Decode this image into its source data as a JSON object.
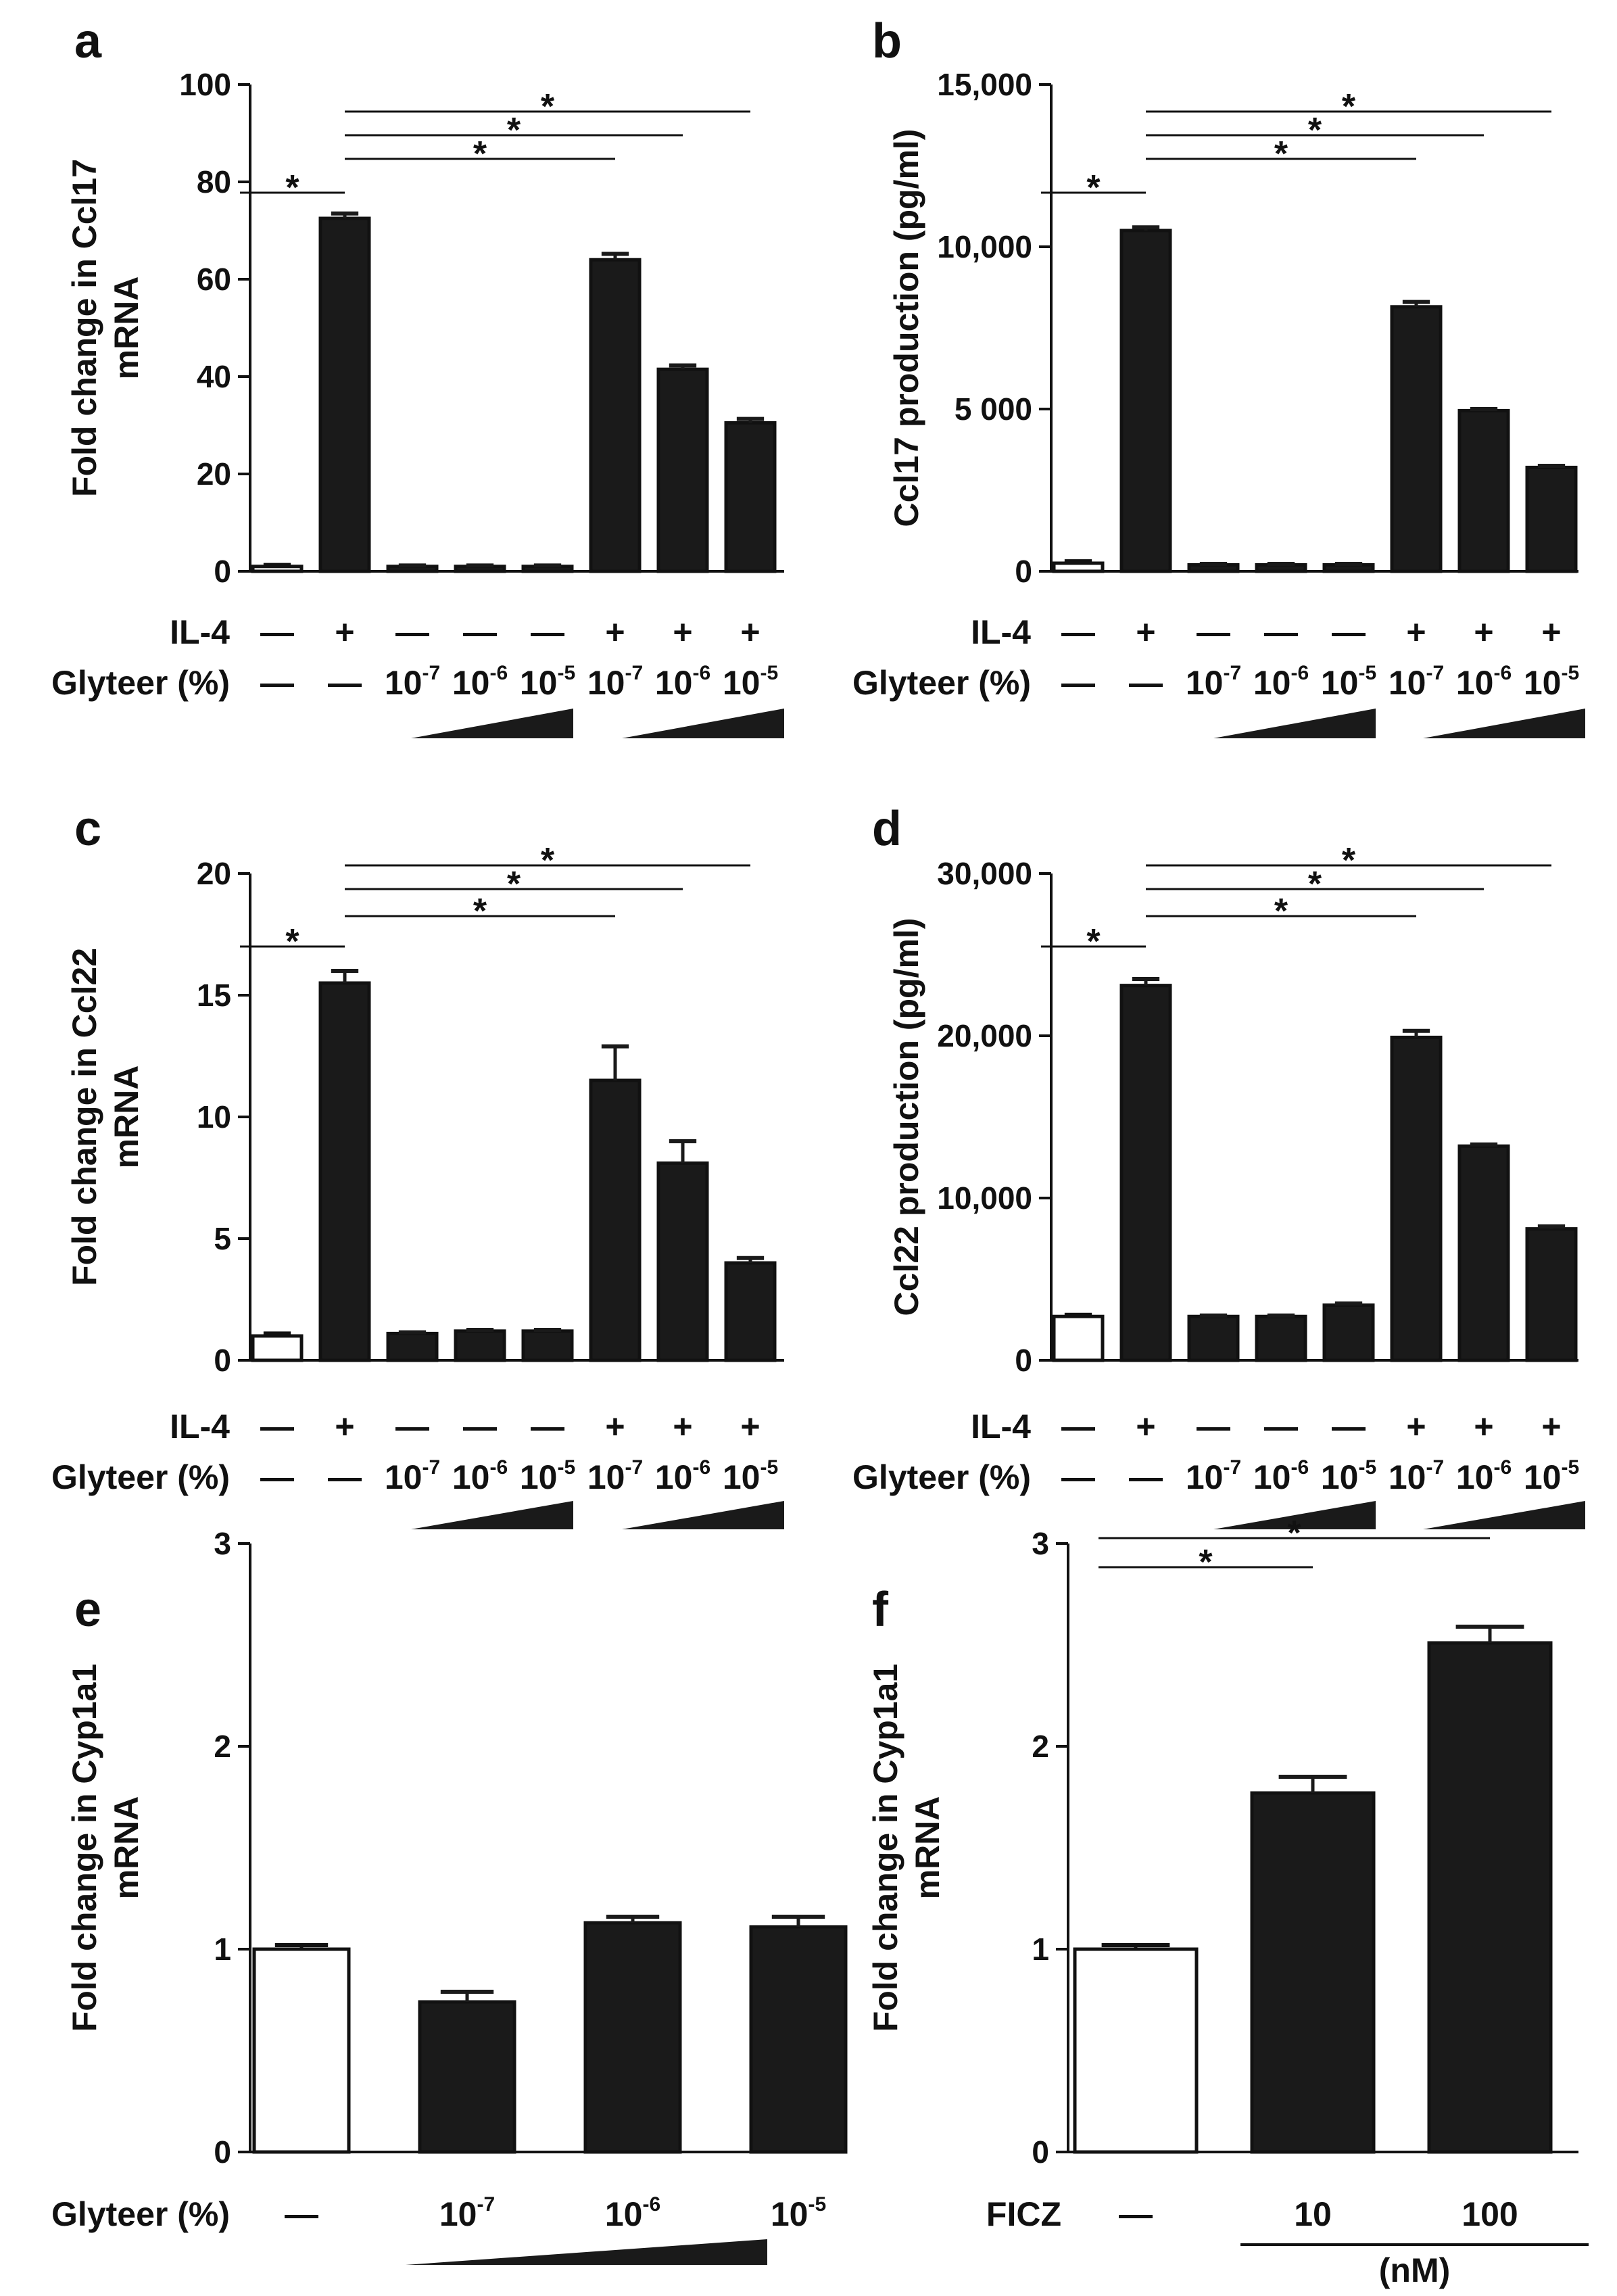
{
  "colors": {
    "bar_fill": "#1a1a1a",
    "empty_fill": "#ffffff",
    "stroke": "#111111"
  },
  "chart_data": [
    {
      "panel": "a",
      "type": "bar",
      "ylabel_lines": [
        "Fold change in Ccl17",
        "mRNA"
      ],
      "ylim": [
        0,
        100
      ],
      "yticks": [
        "0",
        "20",
        "40",
        "60",
        "80",
        "100"
      ],
      "yticks_values": [
        0,
        20,
        40,
        60,
        80,
        100
      ],
      "values": [
        1.0,
        72.5,
        1.0,
        1.0,
        1.0,
        64.0,
        41.5,
        30.5
      ],
      "errors": [
        0.3,
        1.0,
        0.2,
        0.2,
        0.2,
        1.2,
        0.8,
        0.8
      ],
      "filled": [
        false,
        true,
        true,
        true,
        true,
        true,
        true,
        true
      ],
      "row1_label": "IL-4",
      "row1": [
        "—",
        "+",
        "—",
        "—",
        "—",
        "+",
        "+",
        "+"
      ],
      "row2_label": "Glyteer (%)",
      "row2": [
        "—",
        "—",
        "10",
        "10",
        "10",
        "10",
        "10",
        "10"
      ],
      "row2_sup": [
        "",
        "",
        "-7",
        "-6",
        "-5",
        "-7",
        "-6",
        "-5"
      ],
      "significance": [
        {
          "from": 0,
          "to": 1,
          "label": "*"
        },
        {
          "from": 1,
          "to": 5,
          "label": "*"
        },
        {
          "from": 1,
          "to": 6,
          "label": "*"
        },
        {
          "from": 1,
          "to": 7,
          "label": "*"
        }
      ]
    },
    {
      "panel": "b",
      "type": "bar",
      "ylabel_lines": [
        "Ccl17 production (pg/ml)"
      ],
      "ylim": [
        0,
        15000
      ],
      "yticks": [
        "0",
        "5 000",
        "10,000",
        "15,000"
      ],
      "yticks_values": [
        0,
        5000,
        10000,
        15000
      ],
      "values": [
        250,
        10500,
        200,
        200,
        200,
        8150,
        4950,
        3200
      ],
      "errors": [
        60,
        100,
        30,
        30,
        30,
        150,
        50,
        50
      ],
      "filled": [
        false,
        true,
        true,
        true,
        true,
        true,
        true,
        true
      ],
      "row1_label": "IL-4",
      "row1": [
        "—",
        "+",
        "—",
        "—",
        "—",
        "+",
        "+",
        "+"
      ],
      "row2_label": "Glyteer (%)",
      "row2": [
        "—",
        "—",
        "10",
        "10",
        "10",
        "10",
        "10",
        "10"
      ],
      "row2_sup": [
        "",
        "",
        "-7",
        "-6",
        "-5",
        "-7",
        "-6",
        "-5"
      ],
      "significance": [
        {
          "from": 0,
          "to": 1,
          "label": "*"
        },
        {
          "from": 1,
          "to": 5,
          "label": "*"
        },
        {
          "from": 1,
          "to": 6,
          "label": "*"
        },
        {
          "from": 1,
          "to": 7,
          "label": "*"
        }
      ]
    },
    {
      "panel": "c",
      "type": "bar",
      "ylabel_lines": [
        "Fold change in Ccl22",
        "mRNA"
      ],
      "ylim": [
        0,
        20
      ],
      "yticks": [
        "0",
        "5",
        "10",
        "15",
        "20"
      ],
      "yticks_values": [
        0,
        5,
        10,
        15,
        20
      ],
      "values": [
        1.0,
        15.5,
        1.1,
        1.2,
        1.2,
        11.5,
        8.1,
        4.0
      ],
      "errors": [
        0.1,
        0.5,
        0.05,
        0.05,
        0.05,
        1.4,
        0.9,
        0.2
      ],
      "filled": [
        false,
        true,
        true,
        true,
        true,
        true,
        true,
        true
      ],
      "row1_label": "IL-4",
      "row1": [
        "—",
        "+",
        "—",
        "—",
        "—",
        "+",
        "+",
        "+"
      ],
      "row2_label": "Glyteer (%)",
      "row2": [
        "—",
        "—",
        "10",
        "10",
        "10",
        "10",
        "10",
        "10"
      ],
      "row2_sup": [
        "",
        "",
        "-7",
        "-6",
        "-5",
        "-7",
        "-6",
        "-5"
      ],
      "significance": [
        {
          "from": 0,
          "to": 1,
          "label": "*"
        },
        {
          "from": 1,
          "to": 5,
          "label": "*"
        },
        {
          "from": 1,
          "to": 6,
          "label": "*"
        },
        {
          "from": 1,
          "to": 7,
          "label": "*"
        }
      ]
    },
    {
      "panel": "d",
      "type": "bar",
      "ylabel_lines": [
        "Ccl22 production (pg/ml)"
      ],
      "ylim": [
        0,
        30000
      ],
      "yticks": [
        "0",
        "10,000",
        "20,000",
        "30,000"
      ],
      "yticks_values": [
        0,
        10000,
        20000,
        30000
      ],
      "values": [
        2700,
        23100,
        2700,
        2700,
        3400,
        19900,
        13200,
        8100
      ],
      "errors": [
        100,
        400,
        60,
        60,
        100,
        400,
        100,
        150
      ],
      "filled": [
        false,
        true,
        true,
        true,
        true,
        true,
        true,
        true
      ],
      "row1_label": "IL-4",
      "row1": [
        "—",
        "+",
        "—",
        "—",
        "—",
        "+",
        "+",
        "+"
      ],
      "row2_label": "Glyteer (%)",
      "row2": [
        "—",
        "—",
        "10",
        "10",
        "10",
        "10",
        "10",
        "10"
      ],
      "row2_sup": [
        "",
        "",
        "-7",
        "-6",
        "-5",
        "-7",
        "-6",
        "-5"
      ],
      "significance": [
        {
          "from": 0,
          "to": 1,
          "label": "*"
        },
        {
          "from": 1,
          "to": 5,
          "label": "*"
        },
        {
          "from": 1,
          "to": 6,
          "label": "*"
        },
        {
          "from": 1,
          "to": 7,
          "label": "*"
        }
      ]
    },
    {
      "panel": "e",
      "type": "bar",
      "ylabel_lines": [
        "Fold change in Cyp1a1",
        "mRNA"
      ],
      "ylim": [
        0,
        3
      ],
      "yticks": [
        "0",
        "1",
        "2",
        "3"
      ],
      "yticks_values": [
        0,
        1,
        2,
        3
      ],
      "values": [
        1.0,
        0.74,
        1.13,
        1.11
      ],
      "errors": [
        0.02,
        0.05,
        0.03,
        0.05
      ],
      "filled": [
        false,
        true,
        true,
        true
      ],
      "row2_label": "Glyteer (%)",
      "row2": [
        "—",
        "10",
        "10",
        "10"
      ],
      "row2_sup": [
        "",
        "-7",
        "-6",
        "-5"
      ],
      "significance": []
    },
    {
      "panel": "f",
      "type": "bar",
      "ylabel_lines": [
        "Fold change in Cyp1a1",
        "mRNA"
      ],
      "ylim": [
        0,
        3
      ],
      "yticks": [
        "0",
        "1",
        "2",
        "3"
      ],
      "yticks_values": [
        0,
        1,
        2,
        3
      ],
      "values": [
        1.0,
        1.77,
        2.51
      ],
      "errors": [
        0.02,
        0.08,
        0.08
      ],
      "filled": [
        false,
        true,
        true
      ],
      "row2_label": "FICZ",
      "row2": [
        "—",
        "10",
        "100"
      ],
      "row2_sup": [
        "",
        "",
        ""
      ],
      "unit_label": "(nM)",
      "significance": [
        {
          "from": 0,
          "to": 1,
          "label": "*"
        },
        {
          "from": 0,
          "to": 2,
          "label": "*"
        }
      ]
    }
  ]
}
